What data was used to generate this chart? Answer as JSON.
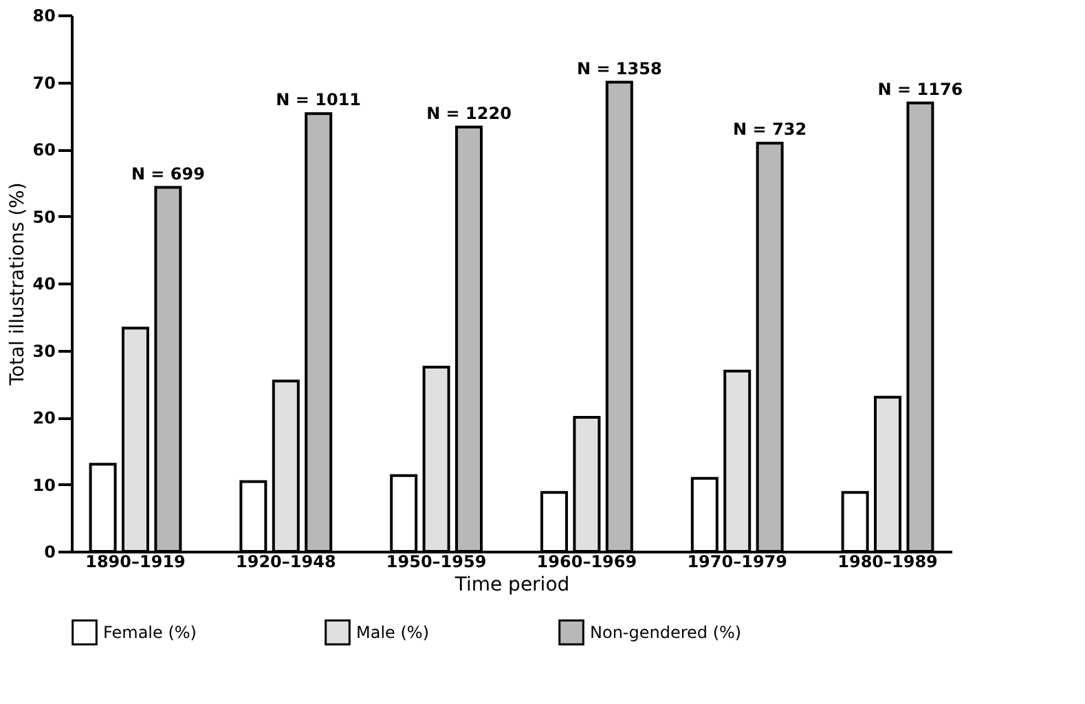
{
  "chart_data": {
    "type": "bar",
    "xlabel": "Time period",
    "ylabel": "Total illustrations (%)",
    "categories": [
      "1890–1919",
      "1920–1948",
      "1950–1959",
      "1960–1969",
      "1970–1979",
      "1980–1989"
    ],
    "series": [
      {
        "name": "Female (%)",
        "color": "#ffffff",
        "values": [
          13,
          10.4,
          11.3,
          8.8,
          10.9,
          8.8
        ]
      },
      {
        "name": "Male (%)",
        "color": "#e0e0e0",
        "values": [
          33.3,
          25.4,
          27.5,
          20,
          26.9,
          23
        ]
      },
      {
        "name": "Non-gendered (%)",
        "color": "#b8b8b8",
        "values": [
          54.3,
          65.3,
          63.3,
          70,
          60.9,
          66.9
        ]
      }
    ],
    "annotations": [
      "N = 699",
      "N = 1011",
      "N = 1220",
      "N = 1358",
      "N = 732",
      "N = 1176"
    ],
    "ylim": [
      0,
      80
    ],
    "yticks": [
      0,
      10,
      20,
      30,
      40,
      50,
      60,
      70,
      80
    ],
    "grid": false,
    "legend": "bottom"
  }
}
